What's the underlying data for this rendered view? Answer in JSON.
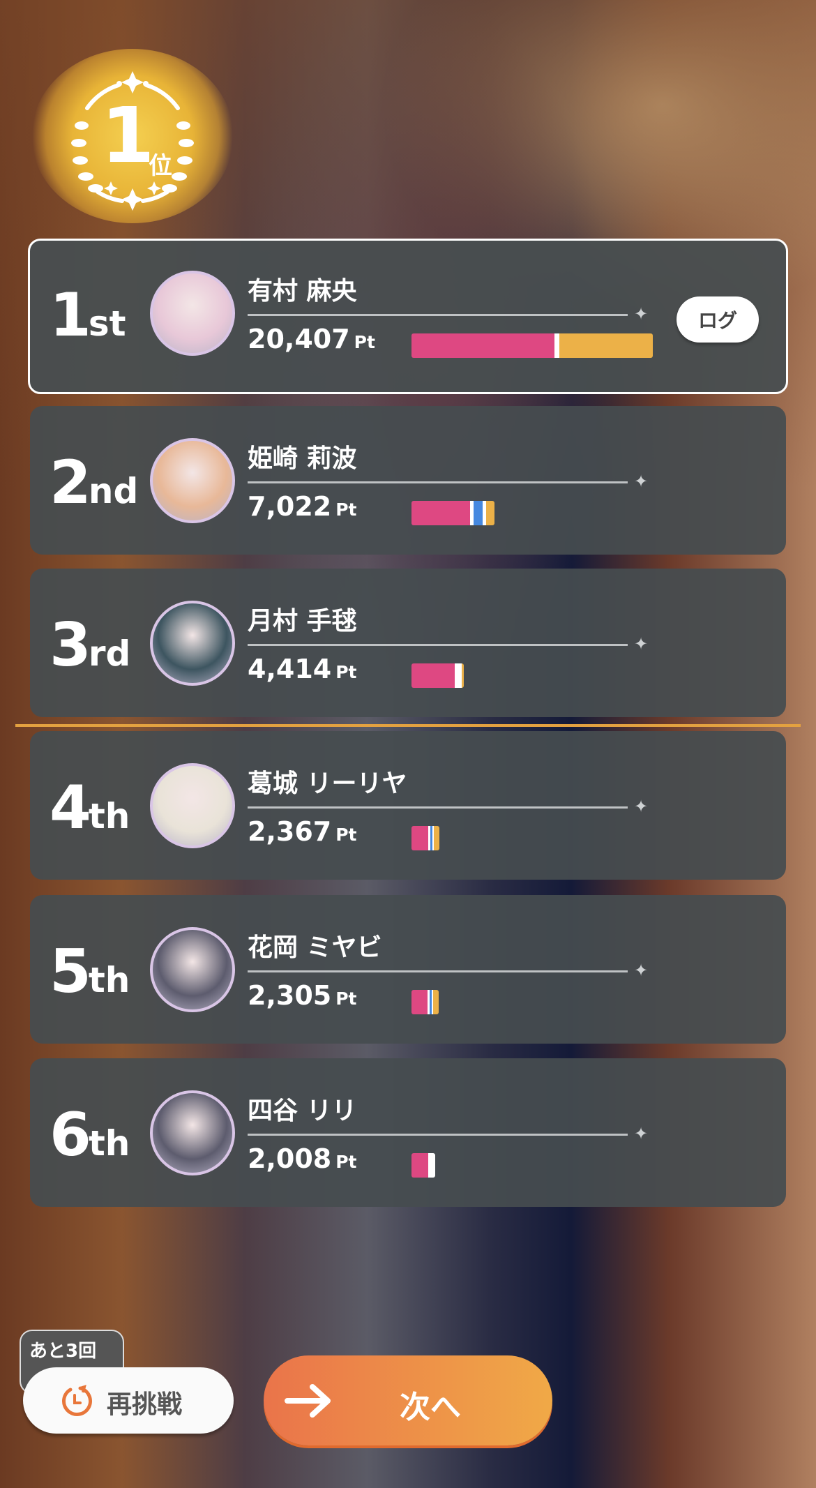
{
  "medal": {
    "number": "1",
    "suffix": "位"
  },
  "log_button": "ログ",
  "players": [
    {
      "rank": "1",
      "rank_suffix": "st",
      "name": "有村 麻央",
      "points": "20,407",
      "unit": "Pt",
      "avatar_color": "#e8c8d8",
      "segments": [
        {
          "color": "#de4882",
          "value": 12090
        },
        {
          "color": "#ffffff",
          "value": 413
        },
        {
          "color": "#ecb148",
          "value": 7904
        }
      ]
    },
    {
      "rank": "2",
      "rank_suffix": "nd",
      "name": "姫崎 莉波",
      "points": "7,022",
      "unit": "Pt",
      "avatar_color": "#e8b898",
      "segments": [
        {
          "color": "#de4882",
          "value": 4950
        },
        {
          "color": "#ffffff",
          "value": 300
        },
        {
          "color": "#4588e0",
          "value": 770
        },
        {
          "color": "#ffffff",
          "value": 300
        },
        {
          "color": "#ecb148",
          "value": 702
        }
      ]
    },
    {
      "rank": "3",
      "rank_suffix": "rd",
      "name": "月村 手毬",
      "points": "4,414",
      "unit": "Pt",
      "avatar_color": "#3d5560",
      "segments": [
        {
          "color": "#de4882",
          "value": 3650
        },
        {
          "color": "#ffffff",
          "value": 590
        },
        {
          "color": "#ecb148",
          "value": 174
        }
      ]
    },
    {
      "rank": "4",
      "rank_suffix": "th",
      "name": "葛城 リーリヤ",
      "points": "2,367",
      "unit": "Pt",
      "avatar_color": "#e9e3d8",
      "segments": [
        {
          "color": "#de4882",
          "value": 1420
        },
        {
          "color": "#ffffff",
          "value": 177
        },
        {
          "color": "#4588e0",
          "value": 177
        },
        {
          "color": "#ffffff",
          "value": 118
        },
        {
          "color": "#ecb148",
          "value": 475
        }
      ]
    },
    {
      "rank": "5",
      "rank_suffix": "th",
      "name": "花岡 ミヤビ",
      "points": "2,305",
      "unit": "Pt",
      "avatar_color": "#5d5c6e",
      "segments": [
        {
          "color": "#de4882",
          "value": 1370
        },
        {
          "color": "#ffffff",
          "value": 175
        },
        {
          "color": "#4588e0",
          "value": 175
        },
        {
          "color": "#ffffff",
          "value": 115
        },
        {
          "color": "#ecb148",
          "value": 470
        }
      ]
    },
    {
      "rank": "6",
      "rank_suffix": "th",
      "name": "四谷 リリ",
      "points": "2,008",
      "unit": "Pt",
      "avatar_color": "#5d5c6e",
      "segments": [
        {
          "color": "#de4882",
          "value": 1430
        },
        {
          "color": "#ffffff",
          "value": 578
        }
      ]
    }
  ],
  "bar_max": 20407,
  "retry": {
    "remaining": "あと3回",
    "label": "再挑戦"
  },
  "next": {
    "label": "次へ"
  },
  "colors": {
    "accent": "#f0a947",
    "divider": "#e3a140"
  }
}
